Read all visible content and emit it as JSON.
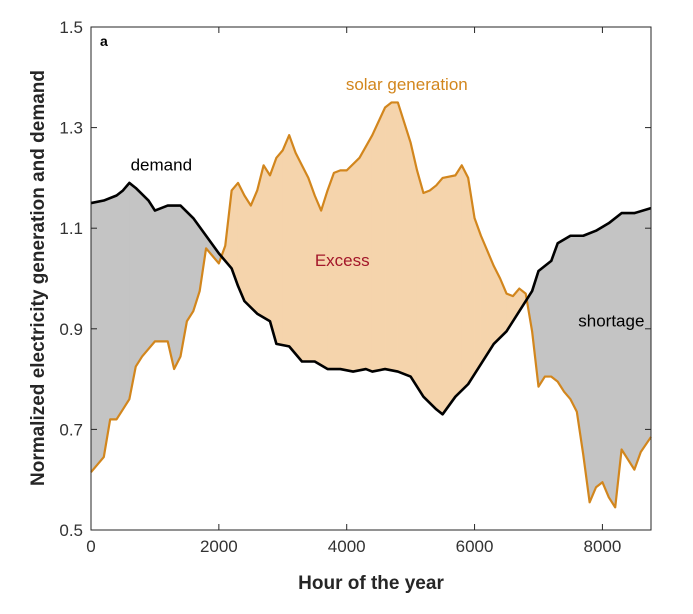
{
  "chart_data": {
    "type": "line",
    "panel_label": "a",
    "xlabel": "Hour of the year",
    "ylabel": "Normalized electricity generation and demand",
    "xlim": [
      0,
      8760
    ],
    "ylim": [
      0.5,
      1.5
    ],
    "xticks": [
      0,
      2000,
      4000,
      6000,
      8000
    ],
    "yticks": [
      0.5,
      0.7,
      0.9,
      1.1,
      1.3,
      1.5
    ],
    "grid": false,
    "series": [
      {
        "name": "demand",
        "color": "#000000",
        "points": [
          [
            0,
            1.15
          ],
          [
            200,
            1.155
          ],
          [
            400,
            1.165
          ],
          [
            500,
            1.175
          ],
          [
            600,
            1.19
          ],
          [
            700,
            1.18
          ],
          [
            900,
            1.155
          ],
          [
            1000,
            1.135
          ],
          [
            1200,
            1.145
          ],
          [
            1400,
            1.145
          ],
          [
            1600,
            1.12
          ],
          [
            1800,
            1.085
          ],
          [
            2000,
            1.05
          ],
          [
            2200,
            1.02
          ],
          [
            2300,
            0.985
          ],
          [
            2400,
            0.955
          ],
          [
            2600,
            0.93
          ],
          [
            2800,
            0.915
          ],
          [
            2900,
            0.87
          ],
          [
            3100,
            0.865
          ],
          [
            3300,
            0.835
          ],
          [
            3500,
            0.835
          ],
          [
            3700,
            0.82
          ],
          [
            3900,
            0.82
          ],
          [
            4100,
            0.815
          ],
          [
            4300,
            0.82
          ],
          [
            4400,
            0.815
          ],
          [
            4600,
            0.82
          ],
          [
            4800,
            0.815
          ],
          [
            5000,
            0.805
          ],
          [
            5200,
            0.765
          ],
          [
            5400,
            0.74
          ],
          [
            5500,
            0.73
          ],
          [
            5700,
            0.765
          ],
          [
            5900,
            0.79
          ],
          [
            6100,
            0.83
          ],
          [
            6300,
            0.87
          ],
          [
            6500,
            0.895
          ],
          [
            6700,
            0.935
          ],
          [
            6900,
            0.975
          ],
          [
            7000,
            1.015
          ],
          [
            7200,
            1.035
          ],
          [
            7300,
            1.07
          ],
          [
            7500,
            1.085
          ],
          [
            7700,
            1.085
          ],
          [
            7900,
            1.095
          ],
          [
            8100,
            1.11
          ],
          [
            8300,
            1.13
          ],
          [
            8500,
            1.13
          ],
          [
            8760,
            1.14
          ]
        ]
      },
      {
        "name": "solar generation",
        "color": "#d2861d",
        "points": [
          [
            0,
            0.615
          ],
          [
            200,
            0.645
          ],
          [
            300,
            0.72
          ],
          [
            400,
            0.72
          ],
          [
            500,
            0.74
          ],
          [
            600,
            0.76
          ],
          [
            700,
            0.825
          ],
          [
            800,
            0.845
          ],
          [
            900,
            0.86
          ],
          [
            1000,
            0.875
          ],
          [
            1200,
            0.875
          ],
          [
            1300,
            0.82
          ],
          [
            1400,
            0.845
          ],
          [
            1500,
            0.915
          ],
          [
            1600,
            0.935
          ],
          [
            1700,
            0.975
          ],
          [
            1800,
            1.06
          ],
          [
            1900,
            1.045
          ],
          [
            2000,
            1.03
          ],
          [
            2100,
            1.065
          ],
          [
            2200,
            1.175
          ],
          [
            2300,
            1.19
          ],
          [
            2400,
            1.165
          ],
          [
            2500,
            1.145
          ],
          [
            2600,
            1.175
          ],
          [
            2700,
            1.225
          ],
          [
            2800,
            1.205
          ],
          [
            2900,
            1.24
          ],
          [
            3000,
            1.255
          ],
          [
            3100,
            1.285
          ],
          [
            3200,
            1.25
          ],
          [
            3300,
            1.225
          ],
          [
            3400,
            1.2
          ],
          [
            3500,
            1.165
          ],
          [
            3600,
            1.135
          ],
          [
            3700,
            1.175
          ],
          [
            3800,
            1.21
          ],
          [
            3900,
            1.215
          ],
          [
            4000,
            1.215
          ],
          [
            4200,
            1.24
          ],
          [
            4400,
            1.285
          ],
          [
            4600,
            1.34
          ],
          [
            4700,
            1.35
          ],
          [
            4800,
            1.35
          ],
          [
            4900,
            1.31
          ],
          [
            5000,
            1.27
          ],
          [
            5100,
            1.215
          ],
          [
            5200,
            1.17
          ],
          [
            5300,
            1.175
          ],
          [
            5400,
            1.185
          ],
          [
            5500,
            1.2
          ],
          [
            5700,
            1.205
          ],
          [
            5800,
            1.225
          ],
          [
            5900,
            1.2
          ],
          [
            6000,
            1.12
          ],
          [
            6100,
            1.085
          ],
          [
            6200,
            1.055
          ],
          [
            6300,
            1.025
          ],
          [
            6400,
            1.0
          ],
          [
            6500,
            0.97
          ],
          [
            6600,
            0.965
          ],
          [
            6700,
            0.98
          ],
          [
            6800,
            0.97
          ],
          [
            6900,
            0.895
          ],
          [
            7000,
            0.785
          ],
          [
            7100,
            0.805
          ],
          [
            7200,
            0.805
          ],
          [
            7300,
            0.795
          ],
          [
            7400,
            0.775
          ],
          [
            7500,
            0.76
          ],
          [
            7600,
            0.735
          ],
          [
            7700,
            0.65
          ],
          [
            7800,
            0.555
          ],
          [
            7900,
            0.585
          ],
          [
            8000,
            0.595
          ],
          [
            8100,
            0.565
          ],
          [
            8200,
            0.545
          ],
          [
            8300,
            0.66
          ],
          [
            8400,
            0.64
          ],
          [
            8500,
            0.62
          ],
          [
            8600,
            0.655
          ],
          [
            8760,
            0.685
          ]
        ]
      }
    ],
    "fills": {
      "shortage_color": "#c4c4c4",
      "excess_color": "#f5d4ac"
    },
    "annotations": [
      {
        "text": "solar generation",
        "x": 4940,
        "y": 1.375,
        "color": "#d2861d"
      },
      {
        "text": "demand",
        "x": 1100,
        "y": 1.215,
        "color": "#000000"
      },
      {
        "text": "Excess",
        "x": 3930,
        "y": 1.025,
        "color": "#a3172a"
      },
      {
        "text": "shortage",
        "x": 8140,
        "y": 0.905,
        "color": "#000000"
      }
    ]
  }
}
